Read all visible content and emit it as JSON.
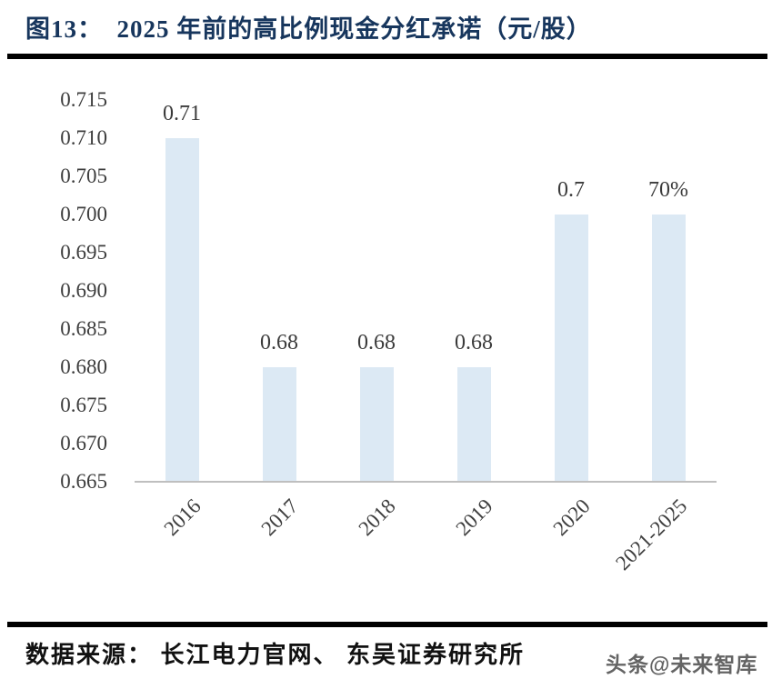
{
  "figure": {
    "title": "图13：  2025 年前的高比例现金分红承诺（元/股）",
    "source": "数据来源： 长江电力官网、 东吴证券研究所",
    "watermark": "头条@未来智库"
  },
  "chart_data": {
    "type": "bar",
    "title": "2025 年前的高比例现金分红承诺（元/股）",
    "categories": [
      "2016",
      "2017",
      "2018",
      "2019",
      "2020",
      "2021-2025"
    ],
    "values": [
      0.71,
      0.68,
      0.68,
      0.68,
      0.7,
      0.7
    ],
    "data_labels": [
      "0.71",
      "0.68",
      "0.68",
      "0.68",
      "0.7",
      "70%"
    ],
    "xlabel": "",
    "ylabel": "",
    "ylim": [
      0.665,
      0.715
    ],
    "ytick_step": 0.005,
    "ytick_labels": [
      "0.715",
      "0.710",
      "0.705",
      "0.700",
      "0.695",
      "0.690",
      "0.685",
      "0.680",
      "0.675",
      "0.670",
      "0.665"
    ],
    "grid": false,
    "legend": false,
    "x_label_rotation_deg": -45,
    "bar_color": "#dce9f4",
    "axis_line_color": "#bfbfbf",
    "tick_label_color": "#3d3d3d",
    "title_color": "#17365d"
  }
}
